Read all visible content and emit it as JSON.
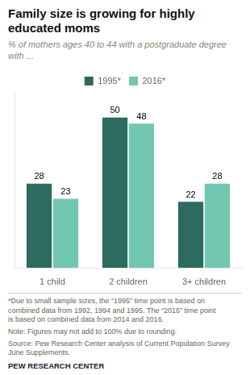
{
  "chart_data": {
    "type": "bar",
    "title": "Family size is growing for highly\neducated moms",
    "subtitle": "% of mothers ages 40 to 44 with a postgraduate degree\nwith ...",
    "categories": [
      "1 child",
      "2 children",
      "3+ children"
    ],
    "series": [
      {
        "name": "1995*",
        "values": [
          28,
          50,
          22
        ],
        "color": "#2d6b5e"
      },
      {
        "name": "2016*",
        "values": [
          23,
          48,
          28
        ],
        "color": "#72c7b0"
      }
    ],
    "ylim": [
      0,
      58
    ],
    "grid": false,
    "legend": "top",
    "data_labels": true,
    "tick_labels": "x",
    "annotations": [
      "*Due to small sample sizes, the “1995” time point is based on\ncombined data from 1992, 1994 and 1995. The “2016” time point\nis based on combined data from 2014 and 2016.",
      "Note: Figures may not add to 100% due to rounding.",
      "Source: Pew Research Center analysis of Current Population Survey\nJune Supplements.",
      "PEW RESEARCH CENTER"
    ]
  }
}
